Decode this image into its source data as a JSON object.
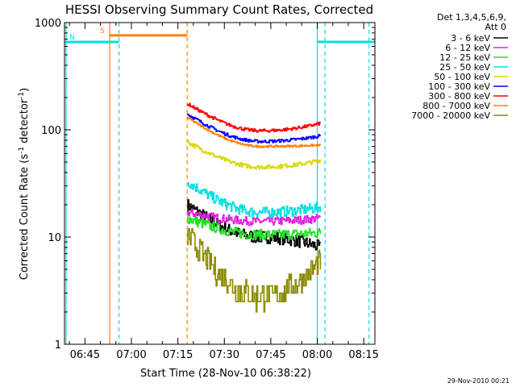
{
  "chart_data": {
    "type": "line",
    "title": "HESSI Observing Summary Count Rates, Corrected",
    "xlabel": "Start Time (28-Nov-10 06:38:22)",
    "ylabel_main": "Corrected Count Rate (s",
    "ylabel_sup1": "-1",
    "ylabel_mid": " detector",
    "ylabel_sup2": "-1",
    "ylabel_end": ")",
    "y_scale": "log",
    "ylim": [
      1,
      1000
    ],
    "xlim_minutes": [
      38.4,
      138.6
    ],
    "x_tick_minutes": [
      45,
      60,
      75,
      90,
      105,
      120,
      135
    ],
    "x_tick_labels": [
      "06:45",
      "07:00",
      "07:15",
      "07:30",
      "07:45",
      "08:00",
      "08:15"
    ],
    "y_tick_values": [
      1,
      10,
      100,
      1000
    ],
    "y_tick_labels": [
      "1",
      "10",
      "100",
      "1000"
    ],
    "legend_title": [
      "Det 1,3,4,5,6,9,",
      "Att 0"
    ],
    "legend_placement": "top-right-outside",
    "timestamp": "29-Nov-2010 00:21",
    "series": [
      {
        "name": "3 - 6 keV",
        "color": "#000000",
        "start": 20,
        "end": 8,
        "lo": 10,
        "noise": 0.06
      },
      {
        "name": "6 - 12 keV",
        "color": "#e020e0",
        "start": 17,
        "end": 15,
        "lo": 14,
        "noise": 0.04
      },
      {
        "name": "12 - 25 keV",
        "color": "#20e020",
        "start": 15,
        "end": 11,
        "lo": 10.5,
        "noise": 0.05
      },
      {
        "name": "25 - 50 keV",
        "color": "#00e0e0",
        "start": 33,
        "end": 19,
        "lo": 17,
        "noise": 0.05
      },
      {
        "name": "50 - 100 keV",
        "color": "#d8d800",
        "start": 77,
        "end": 52,
        "lo": 45,
        "noise": 0.02
      },
      {
        "name": "100 - 300 keV",
        "color": "#0000ff",
        "start": 140,
        "end": 88,
        "lo": 78,
        "noise": 0.015
      },
      {
        "name": "300 - 800 keV",
        "color": "#ff0000",
        "start": 175,
        "end": 115,
        "lo": 98,
        "noise": 0.015
      },
      {
        "name": "800 - 7000 keV",
        "color": "#ff8000",
        "start": 130,
        "end": 72,
        "lo": 70,
        "noise": 0.01
      },
      {
        "name": "7000 - 20000 keV",
        "color": "#8b8b00",
        "start": 10.5,
        "end": 6,
        "lo": 2.8,
        "noise": 0.12
      }
    ],
    "data_start_minute": 78,
    "data_end_minute": 121,
    "flags": [
      {
        "label": "S",
        "color": "#ff8000",
        "from": 53,
        "to": 78,
        "level": 760
      },
      {
        "label": "N",
        "color": "#00e0e0",
        "from": 38.4,
        "to": 56,
        "level": 660
      },
      {
        "label": "",
        "color": "#00e0e0",
        "from": 120,
        "to": 138.6,
        "level": 660
      }
    ],
    "markers": [
      {
        "minute": 38.9,
        "color": "#00e0e0",
        "style": "solid"
      },
      {
        "minute": 53,
        "color": "#ff8000",
        "style": "solid"
      },
      {
        "minute": 56,
        "color": "#00e0e0",
        "style": "dashed"
      },
      {
        "minute": 78,
        "color": "#ff8000",
        "style": "dashed"
      },
      {
        "minute": 120,
        "color": "#00e0e0",
        "style": "solid"
      },
      {
        "minute": 122.5,
        "color": "#00e0e0",
        "style": "dashed"
      },
      {
        "minute": 136.7,
        "color": "#00e0e0",
        "style": "dashed"
      }
    ]
  }
}
